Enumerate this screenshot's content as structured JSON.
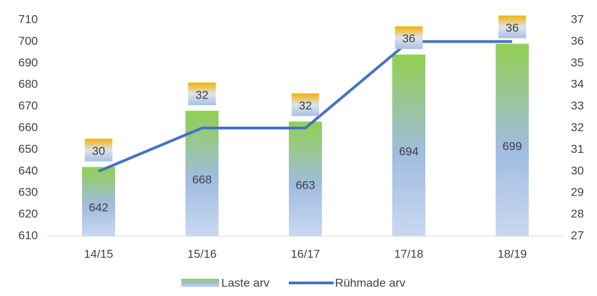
{
  "chart_data": {
    "type": "bar",
    "categories": [
      "14/15",
      "15/16",
      "16/17",
      "17/18",
      "18/19"
    ],
    "series": [
      {
        "name": "Laste arv",
        "type": "bar",
        "color": "#92d050",
        "values": [
          642,
          668,
          663,
          694,
          699
        ]
      },
      {
        "name": "Rühmade arv",
        "type": "line",
        "axis": "y2",
        "color": "#4472c4",
        "values": [
          30,
          32,
          32,
          36,
          36
        ]
      }
    ],
    "ylim": [
      610,
      710
    ],
    "yticks": [
      610,
      620,
      630,
      640,
      650,
      660,
      670,
      680,
      690,
      700,
      710
    ],
    "y2lim": [
      27,
      37
    ],
    "y2ticks": [
      27,
      28,
      29,
      30,
      31,
      32,
      33,
      34,
      35,
      36,
      37
    ],
    "grid": false,
    "legend": "bottom"
  }
}
